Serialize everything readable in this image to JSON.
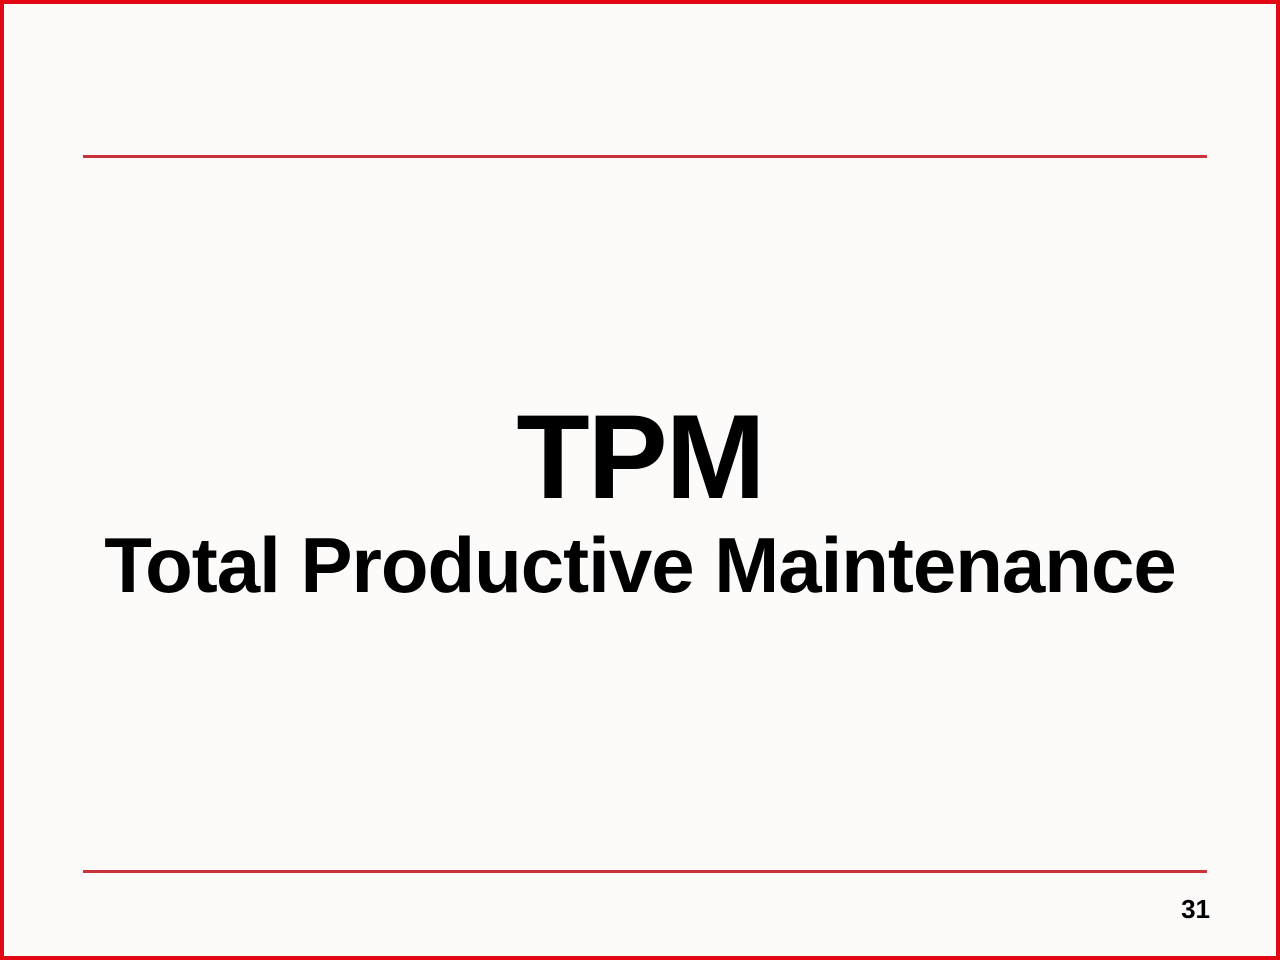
{
  "slide": {
    "title": "TPM",
    "subtitle": "Total Productive Maintenance",
    "page_number": "31",
    "border_color": "#e30613",
    "divider_color": "#c8343a",
    "background_color": "#fdfafa",
    "text_color": "#000000",
    "title_fontsize": 120,
    "subtitle_fontsize": 78,
    "page_number_fontsize": 26
  }
}
